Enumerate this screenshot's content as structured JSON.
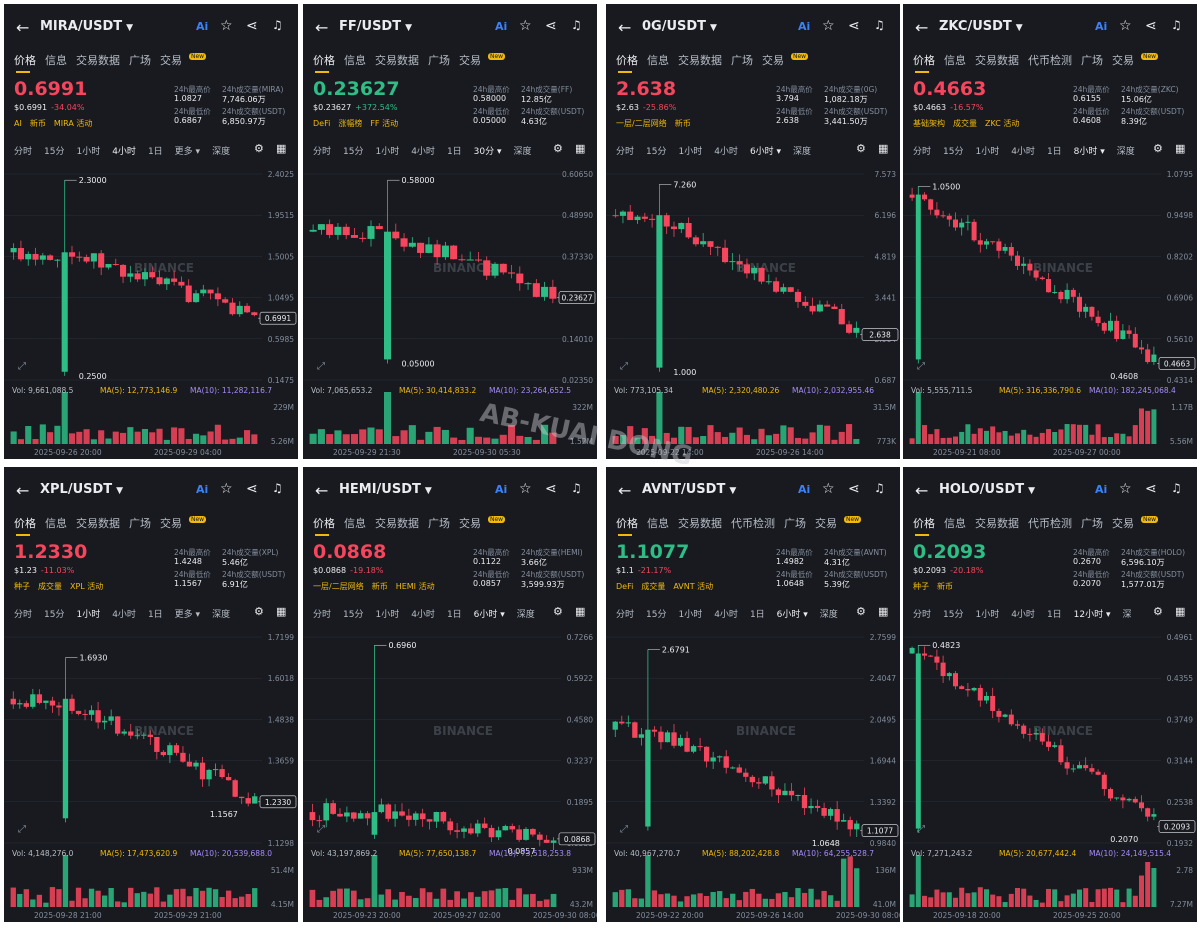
{
  "common": {
    "back_icon": "arrow-left-icon",
    "ai_label": "Ai",
    "icons": [
      "star-icon",
      "share-icon",
      "bell-icon"
    ],
    "badge_new": "New",
    "watermark": "BINANCE",
    "colors": {
      "up": "#2ebd85",
      "down": "#f6465d",
      "accent": "#f0b90b",
      "bg": "#181a20"
    }
  },
  "overlay_watermark": "AB-KUAI DONG",
  "panels": [
    {
      "pair": "MIRA/USDT",
      "tabs": [
        "价格",
        "信息",
        "交易数据",
        "广场",
        "交易"
      ],
      "price": "0.6991",
      "dir": "down",
      "sub_usd": "$0.6991",
      "sub_chg": "-34.04%",
      "tags": [
        "AI",
        "新币",
        "MIRA 活动"
      ],
      "stats": [
        {
          "k": "24h最高价",
          "v": "1.0827"
        },
        {
          "k": "24h成交量(MIRA)",
          "v": "7,746.06万"
        },
        {
          "k": "24h最低价",
          "v": "0.6867"
        },
        {
          "k": "24h成交额(USDT)",
          "v": "6,850.97万"
        }
      ],
      "timeframes": [
        "分时",
        "15分",
        "1小时",
        "4小时",
        "1日",
        "更多 ▾",
        "深度"
      ],
      "tf_active": 3,
      "chart_data": {
        "type": "candlestick",
        "y_ticks": [
          "2.4025",
          "1.9515",
          "1.5005",
          "1.0495",
          "0.5985",
          "0.1475"
        ],
        "last": "0.6991",
        "high_label": "2.3000",
        "low_label": "0.2500",
        "vol_text": "Vol: 9,661,088.5",
        "ma5": "MA(5): 12,773,146.9",
        "ma10": "MA(10): 11,282,116.7",
        "vol_ticks": [
          "229M",
          "5.26M"
        ],
        "x_ticks": [
          "2025-09-26 20:00",
          "2025-09-29 04:00"
        ]
      }
    },
    {
      "pair": "FF/USDT",
      "tabs": [
        "价格",
        "信息",
        "交易数据",
        "广场",
        "交易"
      ],
      "price": "0.23627",
      "dir": "up",
      "sub_usd": "$0.23627",
      "sub_chg": "+372.54%",
      "tags": [
        "DeFi",
        "涨幅榜",
        "FF 活动"
      ],
      "stats": [
        {
          "k": "24h最高价",
          "v": "0.58000"
        },
        {
          "k": "24h成交量(FF)",
          "v": "12.85亿"
        },
        {
          "k": "24h最低价",
          "v": "0.05000"
        },
        {
          "k": "24h成交额(USDT)",
          "v": "4.63亿"
        }
      ],
      "timeframes": [
        "分时",
        "15分",
        "1小时",
        "4小时",
        "1日",
        "30分 ▾",
        "深度"
      ],
      "tf_active": 5,
      "chart_data": {
        "type": "candlestick",
        "y_ticks": [
          "0.60650",
          "0.48990",
          "0.37330",
          "0.25670",
          "0.14010",
          "0.02350"
        ],
        "last": "0.23627",
        "high_label": "0.58000",
        "low_label": "0.05000",
        "vol_text": "Vol: 7,065,653.2",
        "ma5": "MA(5): 30,414,833.2",
        "ma10": "MA(10): 23,264,652.5",
        "vol_ticks": [
          "322M",
          "1.52M"
        ],
        "x_ticks": [
          "2025-09-29 21:30",
          "2025-09-30 05:30"
        ]
      }
    },
    {
      "pair": "0G/USDT",
      "tabs": [
        "价格",
        "信息",
        "交易数据",
        "广场",
        "交易"
      ],
      "price": "2.638",
      "dir": "down",
      "sub_usd": "$2.63",
      "sub_chg": "-25.86%",
      "tags": [
        "一层/二层网络",
        "新币"
      ],
      "stats": [
        {
          "k": "24h最高价",
          "v": "3.794"
        },
        {
          "k": "24h成交量(0G)",
          "v": "1,082.18万"
        },
        {
          "k": "24h最低价",
          "v": "2.638"
        },
        {
          "k": "24h成交额(USDT)",
          "v": "3,441.50万"
        }
      ],
      "timeframes": [
        "分时",
        "15分",
        "1小时",
        "4小时",
        "6小时 ▾",
        "深度"
      ],
      "tf_active": 4,
      "chart_data": {
        "type": "candlestick",
        "y_ticks": [
          "7.573",
          "6.196",
          "4.819",
          "3.441",
          "2.064",
          "0.687"
        ],
        "last": "2.638",
        "high_label": "7.260",
        "low_label": "1.000",
        "vol_text": "Vol: 773,105.34",
        "ma5": "MA(5): 2,320,480.26",
        "ma10": "MA(10): 2,032,955.46",
        "vol_ticks": [
          "31.5M",
          "773K"
        ],
        "x_ticks": [
          "2025-09-22 14:00",
          "2025-09-26 14:00"
        ]
      }
    },
    {
      "pair": "ZKC/USDT",
      "tabs": [
        "价格",
        "信息",
        "交易数据",
        "代币检测",
        "广场",
        "交易"
      ],
      "price": "0.4663",
      "dir": "down",
      "sub_usd": "$0.4663",
      "sub_chg": "-16.57%",
      "tags": [
        "基础架构",
        "成交量",
        "ZKC 活动"
      ],
      "stats": [
        {
          "k": "24h最高价",
          "v": "0.6155"
        },
        {
          "k": "24h成交量(ZKC)",
          "v": "15.06亿"
        },
        {
          "k": "24h最低价",
          "v": "0.4608"
        },
        {
          "k": "24h成交额(USDT)",
          "v": "8.39亿"
        }
      ],
      "timeframes": [
        "分时",
        "15分",
        "1小时",
        "4小时",
        "1日",
        "8小时 ▾",
        "深度"
      ],
      "tf_active": 5,
      "chart_data": {
        "type": "candlestick",
        "y_ticks": [
          "1.0795",
          "0.9498",
          "0.8202",
          "0.6906",
          "0.5610",
          "0.4314"
        ],
        "last": "0.4663",
        "high_label": "1.0500",
        "low_label": "0.4608",
        "vol_text": "Vol: 5,555,711.5",
        "ma5": "MA(5): 316,336,790.6",
        "ma10": "MA(10): 182,245,068.4",
        "vol_ticks": [
          "1.17B",
          "5.56M"
        ],
        "x_ticks": [
          "2025-09-21 08:00",
          "2025-09-27 00:00"
        ]
      }
    },
    {
      "pair": "XPL/USDT",
      "tabs": [
        "价格",
        "信息",
        "交易数据",
        "广场",
        "交易"
      ],
      "price": "1.2330",
      "dir": "down",
      "sub_usd": "$1.23",
      "sub_chg": "-11.03%",
      "tags": [
        "种子",
        "成交量",
        "XPL 活动"
      ],
      "stats": [
        {
          "k": "24h最高价",
          "v": "1.4248"
        },
        {
          "k": "24h成交量(XPL)",
          "v": "5.46亿"
        },
        {
          "k": "24h最低价",
          "v": "1.1567"
        },
        {
          "k": "24h成交额(USDT)",
          "v": "6.91亿"
        }
      ],
      "timeframes": [
        "分时",
        "15分",
        "1小时",
        "4小时",
        "1日",
        "更多 ▾",
        "深度"
      ],
      "tf_active": 2,
      "chart_data": {
        "type": "candlestick",
        "y_ticks": [
          "1.7199",
          "1.6018",
          "1.4838",
          "1.3659",
          "1.2479",
          "1.1298"
        ],
        "last": "1.2330",
        "high_label": "1.6930",
        "low_label": "1.1567",
        "vol_text": "Vol: 4,148,276.0",
        "ma5": "MA(5): 17,473,620.9",
        "ma10": "MA(10): 20,539,688.0",
        "vol_ticks": [
          "51.4M",
          "4.15M"
        ],
        "x_ticks": [
          "2025-09-28 21:00",
          "2025-09-29 21:00"
        ]
      }
    },
    {
      "pair": "HEMI/USDT",
      "tabs": [
        "价格",
        "信息",
        "交易数据",
        "广场",
        "交易"
      ],
      "price": "0.0868",
      "dir": "down",
      "sub_usd": "$0.0868",
      "sub_chg": "-19.18%",
      "tags": [
        "一层/二层网络",
        "新币",
        "HEMI 活动"
      ],
      "stats": [
        {
          "k": "24h最高价",
          "v": "0.1122"
        },
        {
          "k": "24h成交量(HEMI)",
          "v": "3.66亿"
        },
        {
          "k": "24h最低价",
          "v": "0.0857"
        },
        {
          "k": "24h成交额(USDT)",
          "v": "3,599.93万"
        }
      ],
      "timeframes": [
        "分时",
        "15分",
        "1小时",
        "4小时",
        "1日",
        "6小时 ▾",
        "深度"
      ],
      "tf_active": 5,
      "chart_data": {
        "type": "candlestick",
        "y_ticks": [
          "0.7266",
          "0.5922",
          "0.4580",
          "0.3237",
          "0.1895",
          "0.0553"
        ],
        "last": "0.0868",
        "high_label": "0.6960",
        "low_label": "0.0857",
        "vol_text": "Vol: 43,197,869.2",
        "ma5": "MA(5): 77,650,138.7",
        "ma10": "MA(10): 73,518,253.8",
        "vol_ticks": [
          "933M",
          "43.2M"
        ],
        "x_ticks": [
          "2025-09-23 20:00",
          "2025-09-27 02:00",
          "2025-09-30 08:00"
        ]
      }
    },
    {
      "pair": "AVNT/USDT",
      "tabs": [
        "价格",
        "信息",
        "交易数据",
        "代币检测",
        "广场",
        "交易"
      ],
      "price": "1.1077",
      "dir": "up",
      "sub_usd": "$1.1",
      "sub_chg": "-21.17%",
      "tags": [
        "DeFi",
        "成交量",
        "AVNT 活动"
      ],
      "stats": [
        {
          "k": "24h最高价",
          "v": "1.4982"
        },
        {
          "k": "24h成交量(AVNT)",
          "v": "4.31亿"
        },
        {
          "k": "24h最低价",
          "v": "1.0648"
        },
        {
          "k": "24h成交额(USDT)",
          "v": "5.39亿"
        }
      ],
      "timeframes": [
        "分时",
        "15分",
        "1小时",
        "4小时",
        "1日",
        "6小时 ▾",
        "深度"
      ],
      "tf_active": 5,
      "chart_data": {
        "type": "candlestick",
        "y_ticks": [
          "2.7599",
          "2.4047",
          "2.0495",
          "1.6944",
          "1.3392",
          "0.9840"
        ],
        "last": "1.1077",
        "high_label": "2.6791",
        "low_label": "1.0648",
        "vol_text": "Vol: 40,967,270.7",
        "ma5": "MA(5): 88,202,428.8",
        "ma10": "MA(10): 64,255,528.7",
        "vol_ticks": [
          "136M",
          "41.0M"
        ],
        "x_ticks": [
          "2025-09-22 20:00",
          "2025-09-26 14:00",
          "2025-09-30 08:00"
        ]
      }
    },
    {
      "pair": "HOLO/USDT",
      "tabs": [
        "价格",
        "信息",
        "交易数据",
        "代币检测",
        "广场",
        "交易"
      ],
      "price": "0.2093",
      "dir": "up",
      "sub_usd": "$0.2093",
      "sub_chg": "-20.18%",
      "tags": [
        "种子",
        "新币"
      ],
      "stats": [
        {
          "k": "24h最高价",
          "v": "0.2670"
        },
        {
          "k": "24h成交量(HOLO)",
          "v": "6,596.10万"
        },
        {
          "k": "24h最低价",
          "v": "0.2070"
        },
        {
          "k": "24h成交额(USDT)",
          "v": "1,577.01万"
        }
      ],
      "timeframes": [
        "分时",
        "15分",
        "1小时",
        "4小时",
        "1日",
        "12小时 ▾",
        "深"
      ],
      "tf_active": 5,
      "chart_data": {
        "type": "candlestick",
        "y_ticks": [
          "0.4961",
          "0.4355",
          "0.3749",
          "0.3144",
          "0.2538",
          "0.1932"
        ],
        "last": "0.2093",
        "high_label": "0.4823",
        "low_label": "0.2070",
        "vol_text": "Vol: 7,271,243.2",
        "ma5": "MA(5): 20,677,442.4",
        "ma10": "MA(10): 24,149,515.4",
        "vol_ticks": [
          "2.78",
          "7.27M"
        ],
        "x_ticks": [
          "2025-09-18 20:00",
          "2025-09-25 20:00"
        ]
      }
    }
  ]
}
